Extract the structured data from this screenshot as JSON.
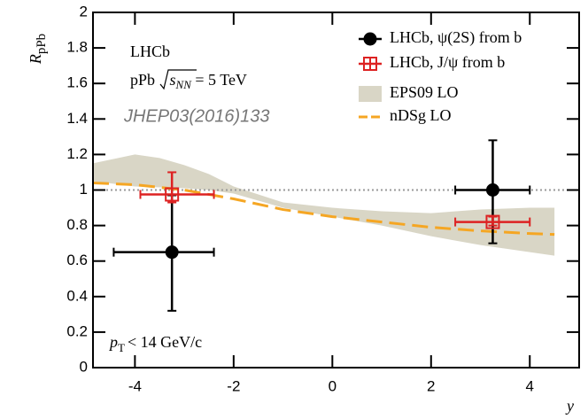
{
  "chart_data": {
    "type": "errorbar",
    "y_label": {
      "main": "R",
      "sub": "pPb"
    },
    "x_label": "y",
    "annotations": {
      "experiment": "LHCb",
      "energy": {
        "pre": "pPb ",
        "sqrt": "s",
        "sub": "NN",
        "post": " = 5 TeV"
      },
      "reference": "JHEP03(2016)133",
      "cut": {
        "main": "p",
        "sub": "T",
        "post": "< 14 GeV/c"
      }
    },
    "xlim": [
      -4.85,
      5
    ],
    "ylim": [
      0,
      2
    ],
    "xticks": [
      -4,
      -2,
      0,
      2,
      4
    ],
    "yticks": [
      0,
      0.2,
      0.4,
      0.6,
      0.8,
      1,
      1.2,
      1.4,
      1.6,
      1.8,
      2
    ],
    "reference_line": 1,
    "legend_position": "upper right",
    "bands": [
      {
        "name": "EPS09 LO",
        "color": "#d9d6c6",
        "x": [
          -4.85,
          -4,
          -3.5,
          -3,
          -2.5,
          -2,
          -1,
          0,
          1,
          2,
          3,
          4,
          4.5
        ],
        "upper": [
          1.15,
          1.2,
          1.18,
          1.14,
          1.09,
          1.02,
          0.93,
          0.9,
          0.88,
          0.87,
          0.89,
          0.9,
          0.9
        ],
        "lower": [
          1.05,
          1.02,
          1.015,
          1.01,
          1.0,
          0.98,
          0.9,
          0.85,
          0.8,
          0.74,
          0.69,
          0.65,
          0.63
        ]
      }
    ],
    "lines": [
      {
        "name": "nDSg LO",
        "color": "#f5a623",
        "x": [
          -4.85,
          -4,
          -3,
          -2,
          -1,
          0,
          1,
          2,
          3,
          4,
          4.5
        ],
        "values": [
          1.04,
          1.03,
          1.0,
          0.95,
          0.89,
          0.85,
          0.82,
          0.79,
          0.77,
          0.755,
          0.75
        ]
      }
    ],
    "series": [
      {
        "name": "LHCb, ψ(2S) from b",
        "color": "#000000",
        "marker": "circle",
        "x": [
          -3.25,
          3.25
        ],
        "values": [
          0.65,
          1.0
        ],
        "xlow": [
          -4.43,
          2.49
        ],
        "xhigh": [
          -2.4,
          4.0
        ],
        "ylow": [
          0.32,
          0.7
        ],
        "yhigh": [
          0.97,
          1.28
        ]
      },
      {
        "name": "LHCb, J/ψ from b",
        "color": "#dd2222",
        "marker": "open-square",
        "x": [
          -3.25,
          3.25
        ],
        "values": [
          0.975,
          0.82
        ],
        "xlow": [
          -3.89,
          2.49
        ],
        "xhigh": [
          -2.4,
          4.0
        ],
        "ylow": [
          0.93,
          0.8
        ],
        "yhigh": [
          1.1,
          0.85
        ]
      }
    ]
  }
}
